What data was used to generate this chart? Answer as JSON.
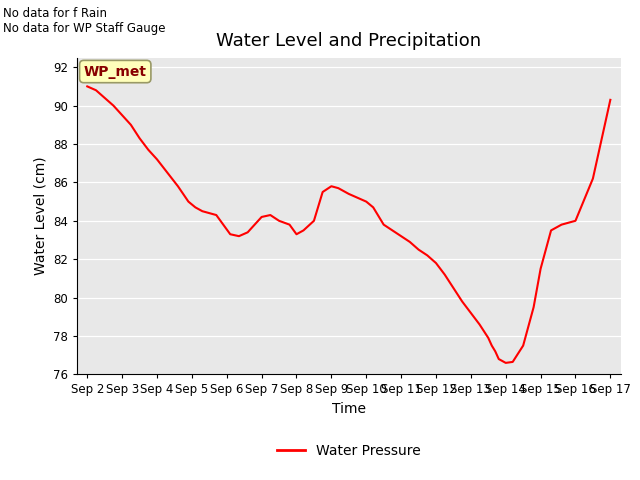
{
  "title": "Water Level and Precipitation",
  "xlabel": "Time",
  "ylabel": "Water Level (cm)",
  "ylim": [
    76,
    92.5
  ],
  "xlim": [
    -0.3,
    15.3
  ],
  "yticks": [
    76,
    78,
    80,
    82,
    84,
    86,
    88,
    90,
    92
  ],
  "xtick_labels": [
    "Sep 2",
    "Sep 3",
    "Sep 4",
    "Sep 5",
    "Sep 6",
    "Sep 7",
    "Sep 8",
    "Sep 9",
    "Sep 10",
    "Sep 11",
    "Sep 12",
    "Sep 13",
    "Sep 14",
    "Sep 15",
    "Sep 16",
    "Sep 17"
  ],
  "line_color": "#ff0000",
  "line_label": "Water Pressure",
  "bg_color": "#e8e8e8",
  "wp_met_label": "WP_met",
  "wp_met_bg": "#ffffbb",
  "wp_met_border": "#999966",
  "wp_met_text_color": "#880000",
  "no_data_text1": "No data for f Rain",
  "no_data_text2": "No data for WP Staff Gauge",
  "x_data": [
    0.0,
    0.25,
    0.5,
    0.75,
    1.0,
    1.25,
    1.5,
    1.75,
    2.0,
    2.3,
    2.6,
    2.9,
    3.1,
    3.3,
    3.5,
    3.7,
    3.9,
    4.1,
    4.35,
    4.6,
    4.8,
    5.0,
    5.25,
    5.5,
    5.8,
    6.0,
    6.2,
    6.5,
    6.75,
    7.0,
    7.2,
    7.5,
    7.75,
    8.0,
    8.2,
    8.5,
    8.75,
    9.0,
    9.25,
    9.5,
    9.75,
    10.0,
    10.25,
    10.5,
    10.75,
    11.0,
    11.25,
    11.5,
    11.6,
    11.7,
    11.8,
    12.0,
    12.2,
    12.5,
    12.8,
    13.0,
    13.3,
    13.6,
    14.0,
    14.5,
    15.0
  ],
  "y_data": [
    91.0,
    90.8,
    90.4,
    90.0,
    89.5,
    89.0,
    88.3,
    87.7,
    87.2,
    86.5,
    85.8,
    85.0,
    84.7,
    84.5,
    84.4,
    84.3,
    83.8,
    83.3,
    83.2,
    83.4,
    83.8,
    84.2,
    84.3,
    84.0,
    83.8,
    83.3,
    83.5,
    84.0,
    85.5,
    85.8,
    85.7,
    85.4,
    85.2,
    85.0,
    84.7,
    83.8,
    83.5,
    83.2,
    82.9,
    82.5,
    82.2,
    81.8,
    81.2,
    80.5,
    79.8,
    79.2,
    78.6,
    77.9,
    77.5,
    77.2,
    76.8,
    76.6,
    76.65,
    77.5,
    79.5,
    81.5,
    83.5,
    83.8,
    84.0,
    86.2,
    90.3
  ],
  "title_fontsize": 13,
  "axis_label_fontsize": 10,
  "tick_fontsize": 8.5,
  "legend_fontsize": 10
}
